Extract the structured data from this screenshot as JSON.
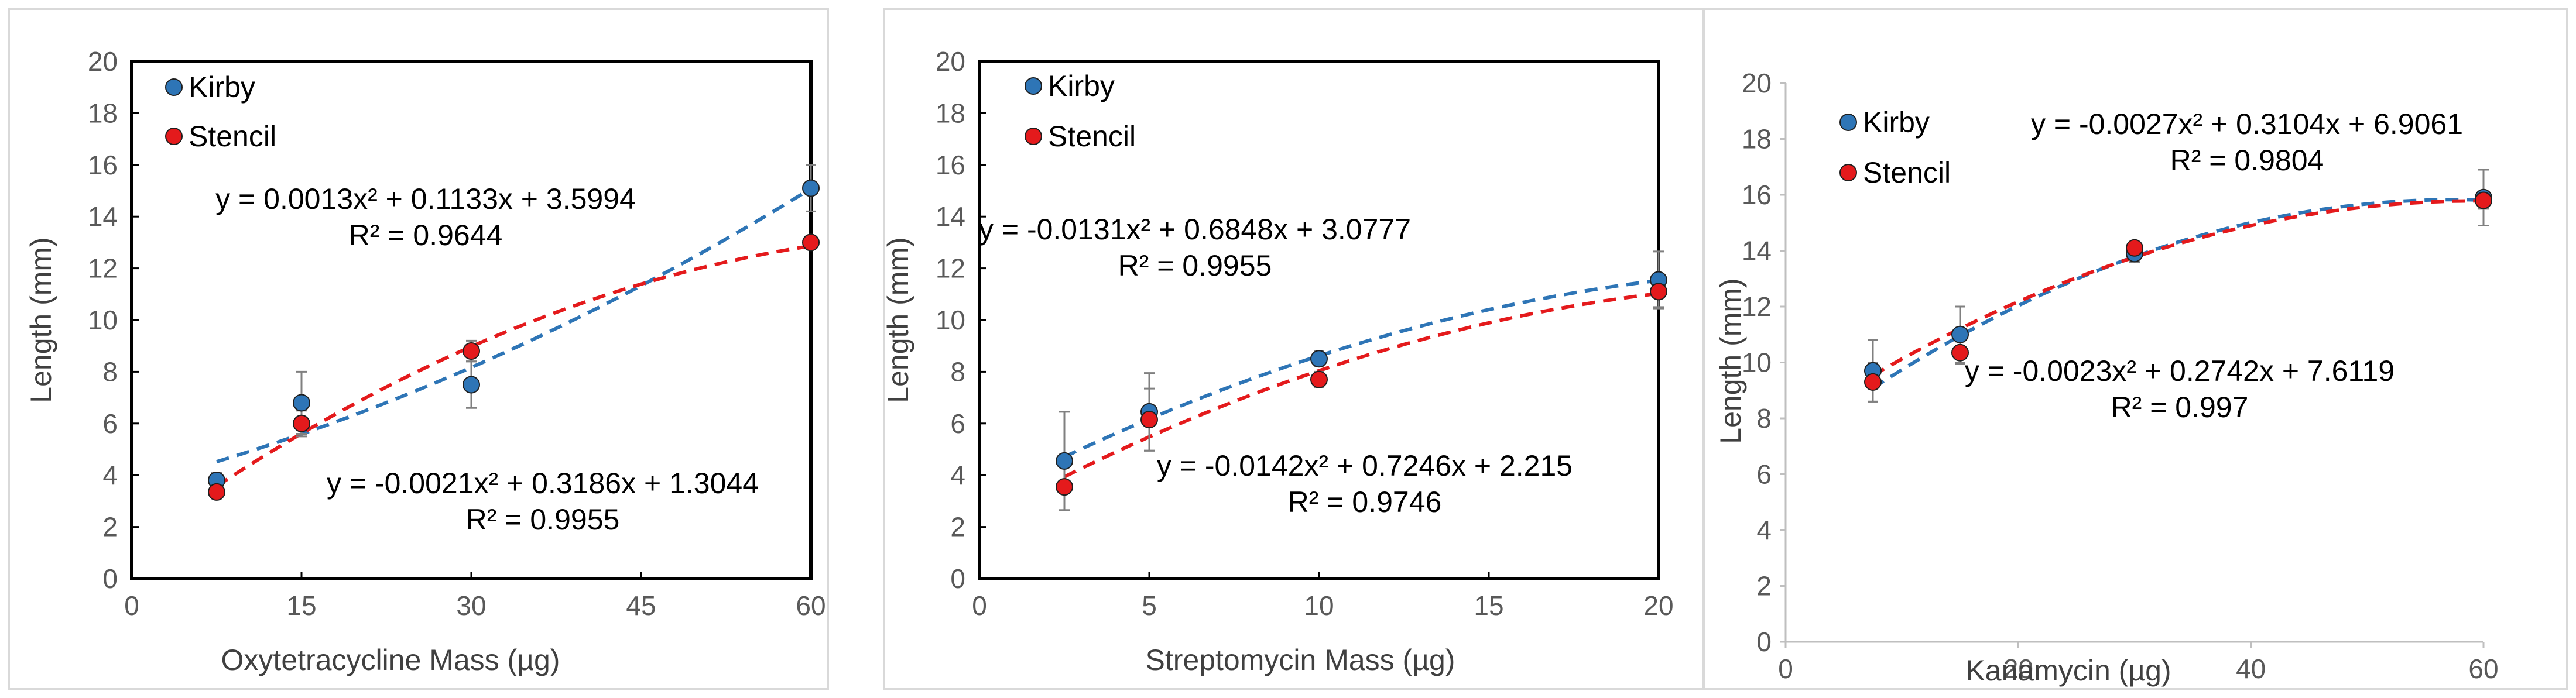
{
  "colors": {
    "kirby": "#2e75b6",
    "stencil": "#e41a1c",
    "marker_edge": "#1f1f1f",
    "errorbar": "#808080"
  },
  "chart_data": [
    {
      "type": "scatter",
      "xlabel": "Oxytetracycline Mass (µg)",
      "ylabel": "Length (mm)",
      "xlim": [
        0,
        60
      ],
      "ylim": [
        0,
        20
      ],
      "xticks": [
        "0",
        "15",
        "30",
        "45",
        "60"
      ],
      "yticks": [
        "0",
        "2",
        "4",
        "6",
        "8",
        "10",
        "12",
        "14",
        "16",
        "18",
        "20"
      ],
      "grid": false,
      "legend_position": "top-left",
      "series": [
        {
          "name": "Kirby",
          "color": "#2e75b6",
          "x": [
            7.5,
            15,
            30,
            60
          ],
          "y": [
            3.8,
            6.8,
            7.5,
            15.1
          ],
          "err": [
            0.3,
            1.2,
            0.9,
            0.9
          ],
          "trend": {
            "a": 0.0013,
            "b": 0.1133,
            "c": 3.5994
          },
          "equation": "y = 0.0013x² + 0.1133x + 3.5994",
          "r2": "R² = 0.9644"
        },
        {
          "name": "Stencil",
          "color": "#e41a1c",
          "x": [
            7.5,
            15,
            30,
            60
          ],
          "y": [
            3.35,
            6.0,
            8.8,
            13.0
          ],
          "err": [
            0.25,
            0.5,
            0.4,
            0.1
          ],
          "trend": {
            "a": -0.0021,
            "b": 0.3186,
            "c": 1.3044
          },
          "equation": "y = -0.0021x² + 0.3186x + 1.3044",
          "r2": "R² = 0.9955"
        }
      ]
    },
    {
      "type": "scatter",
      "xlabel": "Streptomycin Mass (µg)",
      "ylabel": "Length (mm)",
      "xlim": [
        0,
        20
      ],
      "ylim": [
        0,
        20
      ],
      "xticks": [
        "0",
        "5",
        "10",
        "15",
        "20"
      ],
      "yticks": [
        "0",
        "2",
        "4",
        "6",
        "8",
        "10",
        "12",
        "14",
        "16",
        "18",
        "20"
      ],
      "grid": false,
      "legend_position": "top-left",
      "series": [
        {
          "name": "Kirby",
          "color": "#2e75b6",
          "x": [
            2.5,
            5,
            10,
            20
          ],
          "y": [
            4.55,
            6.45,
            8.5,
            11.55
          ],
          "err": [
            1.9,
            1.5,
            0.3,
            1.1
          ],
          "trend": {
            "a": -0.0131,
            "b": 0.6848,
            "c": 3.0777
          },
          "equation": "y = -0.0131x² + 0.6848x + 3.0777",
          "r2": "R² = 0.9955"
        },
        {
          "name": "Stencil",
          "color": "#e41a1c",
          "x": [
            2.5,
            5,
            10,
            20
          ],
          "y": [
            3.55,
            6.15,
            7.7,
            11.1
          ],
          "err": [
            0.9,
            1.2,
            0.3,
            0.6
          ],
          "trend": {
            "a": -0.0142,
            "b": 0.7246,
            "c": 2.215
          },
          "equation": "y = -0.0142x² + 0.7246x + 2.215",
          "r2": "R² = 0.9746"
        }
      ]
    },
    {
      "type": "scatter",
      "xlabel": "Kanamycin (µg)",
      "ylabel": "Length (mm)",
      "xlim": [
        0,
        60
      ],
      "ylim": [
        0,
        20
      ],
      "xticks": [
        "0",
        "20",
        "40",
        "60"
      ],
      "yticks": [
        "0",
        "2",
        "4",
        "6",
        "8",
        "10",
        "12",
        "14",
        "16",
        "18",
        "20"
      ],
      "grid": false,
      "legend_position": "top-left",
      "series": [
        {
          "name": "Kirby",
          "color": "#2e75b6",
          "x": [
            7.5,
            15,
            30,
            60
          ],
          "y": [
            9.7,
            11.0,
            13.9,
            15.9
          ],
          "err": [
            1.1,
            1.0,
            0.3,
            1.0
          ],
          "trend": {
            "a": -0.0027,
            "b": 0.3104,
            "c": 6.9061
          },
          "equation": "y = -0.0027x² + 0.3104x + 6.9061",
          "r2": "R² = 0.9804"
        },
        {
          "name": "Stencil",
          "color": "#e41a1c",
          "x": [
            7.5,
            15,
            30,
            60
          ],
          "y": [
            9.3,
            10.35,
            14.1,
            15.8
          ],
          "err": [
            0.7,
            0.4,
            0.2,
            0.3
          ],
          "trend": {
            "a": -0.0023,
            "b": 0.2742,
            "c": 7.6119
          },
          "equation": "y = -0.0023x² + 0.2742x + 7.6119",
          "r2": "R² = 0.997"
        }
      ]
    }
  ]
}
